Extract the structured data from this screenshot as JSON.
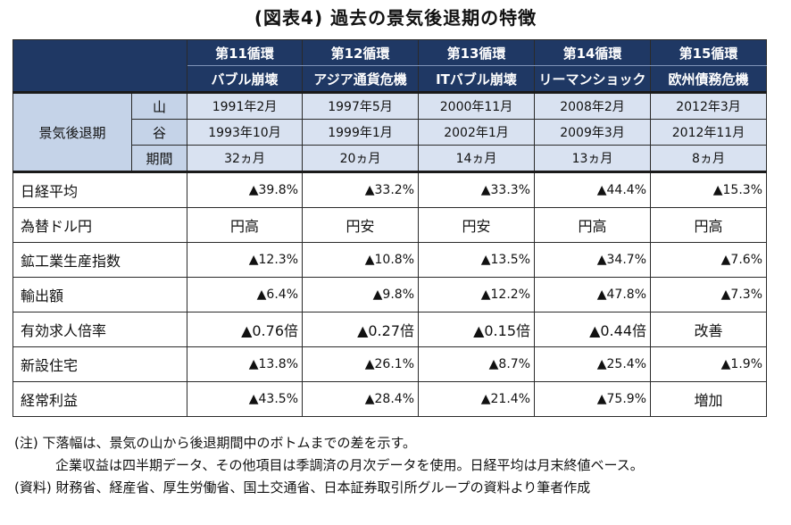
{
  "title": "(図表4) 過去の景気後退期の特徴",
  "cycles": [
    {
      "cycle": "第11循環",
      "name": "バブル崩壊",
      "peak": "1991年2月",
      "trough": "1993年10月",
      "period": "32ヵ月"
    },
    {
      "cycle": "第12循環",
      "name": "アジア通貨危機",
      "peak": "1997年5月",
      "trough": "1999年1月",
      "period": "20ヵ月"
    },
    {
      "cycle": "第13循環",
      "name": "ITバブル崩壊",
      "peak": "2000年11月",
      "trough": "2002年1月",
      "period": "14ヵ月"
    },
    {
      "cycle": "第14循環",
      "name": "リーマンショック",
      "peak": "2008年2月",
      "trough": "2009年3月",
      "period": "13ヵ月"
    },
    {
      "cycle": "第15循環",
      "name": "欧州債務危機",
      "peak": "2012年3月",
      "trough": "2012年11月",
      "period": "8ヵ月"
    }
  ],
  "recession_label": "景気後退期",
  "sub_labels": {
    "peak": "山",
    "trough": "谷",
    "period": "期間"
  },
  "indicators": [
    {
      "label": "日経平均",
      "values": [
        "▲39.8%",
        "▲33.2%",
        "▲33.3%",
        "▲44.4%",
        "▲15.3%"
      ]
    },
    {
      "label": "為替ドル円",
      "values": [
        "円高",
        "円安",
        "円安",
        "円高",
        "円高"
      ]
    },
    {
      "label": "鉱工業生産指数",
      "values": [
        "▲12.3%",
        "▲10.8%",
        "▲13.5%",
        "▲34.7%",
        "▲7.6%"
      ]
    },
    {
      "label": "輸出額",
      "values": [
        "▲6.4%",
        "▲9.8%",
        "▲12.2%",
        "▲47.8%",
        "▲7.3%"
      ]
    },
    {
      "label": "有効求人倍率",
      "values": [
        "▲0.76倍",
        "▲0.27倍",
        "▲0.15倍",
        "▲0.44倍",
        "改善"
      ]
    },
    {
      "label": "新設住宅",
      "values": [
        "▲13.8%",
        "▲26.1%",
        "▲8.7%",
        "▲25.4%",
        "▲1.9%"
      ]
    },
    {
      "label": "経常利益",
      "values": [
        "▲43.5%",
        "▲28.4%",
        "▲21.4%",
        "▲75.9%",
        "増加"
      ]
    }
  ],
  "notes": [
    "(注) 下落幅は、景気の山から後退期間中のボトムまでの差を示す。",
    "企業収益は四半期データ、その他項目は季調済の月次データを使用。日経平均は月末終値ベース。",
    "(資料) 財務省、経産省、厚生労働省、国土交通省、日本証券取引所グループの資料より筆者作成"
  ]
}
